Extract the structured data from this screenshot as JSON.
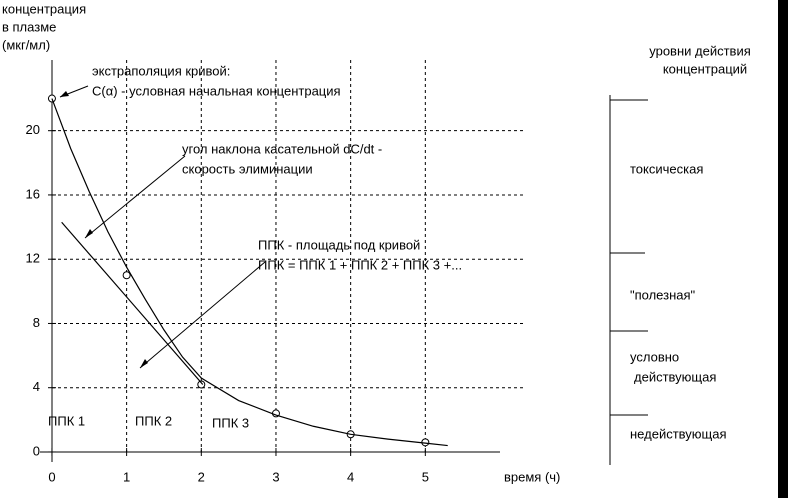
{
  "chart_data": {
    "type": "line",
    "y_label": [
      "концентрация",
      "в плазме",
      "(мкг/мл)"
    ],
    "x_label": "время (ч)",
    "xlim": [
      -0.16,
      6
    ],
    "ylim": [
      -0.5,
      24.4
    ],
    "xticks": [
      0,
      1,
      2,
      3,
      4,
      5
    ],
    "yticks": [
      0,
      4,
      8,
      12,
      16,
      20
    ],
    "grid": true,
    "series": [
      {
        "color": "#000000",
        "marker": "o",
        "x": [
          0,
          1,
          2,
          3,
          4,
          5
        ],
        "values": [
          22,
          11,
          4.2,
          2.4,
          1.1,
          0.6
        ]
      },
      {
        "color": "#000000",
        "x": [
          0,
          0.25,
          0.5,
          0.75,
          1,
          1.25,
          1.5,
          1.75,
          2,
          2.5,
          3,
          3.5,
          4,
          4.5,
          5,
          5.3
        ],
        "values": [
          22,
          18.9,
          16.2,
          13.7,
          11.5,
          9.5,
          7.6,
          5.9,
          4.6,
          3.2,
          2.3,
          1.6,
          1.1,
          0.8,
          0.55,
          0.4
        ]
      },
      {
        "color": "#000000",
        "x": [
          0.13,
          2.02
        ],
        "values": [
          14.3,
          4.2
        ]
      }
    ],
    "annotations": [
      "экстраполяция кривой:",
      "С(α) - условная начальная концентрация",
      "угол наклона касательной dC/dt -",
      "скорость элиминации",
      "ППК - площадь под кривой",
      "ППК = ППК 1 + ППК 2 + ППК 3 +...",
      "ППК 1",
      "ППК 2",
      "ППК 3"
    ],
    "levels": {
      "title": [
        "уровни действия",
        "концентраций"
      ],
      "labels": [
        "токсическая",
        "\"полезная\"",
        "условно",
        "действующая",
        "недействующая"
      ]
    }
  }
}
